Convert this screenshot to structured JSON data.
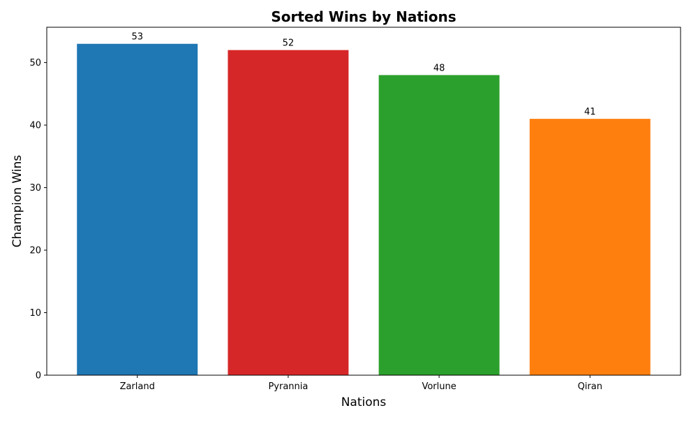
{
  "chart_data": {
    "type": "bar",
    "title": "Sorted Wins by Nations",
    "xlabel": "Nations",
    "ylabel": "Champion Wins",
    "categories": [
      "Zarland",
      "Pyrannia",
      "Vorlune",
      "Qiran"
    ],
    "values": [
      53,
      52,
      48,
      41
    ],
    "colors": [
      "#1f77b4",
      "#d62728",
      "#2ca02c",
      "#ff7f0e"
    ],
    "ylim": [
      0,
      55.65
    ],
    "yticks": [
      0,
      10,
      20,
      30,
      40,
      50
    ],
    "data_labels": [
      "53",
      "52",
      "48",
      "41"
    ],
    "grid": false,
    "legend": false
  }
}
